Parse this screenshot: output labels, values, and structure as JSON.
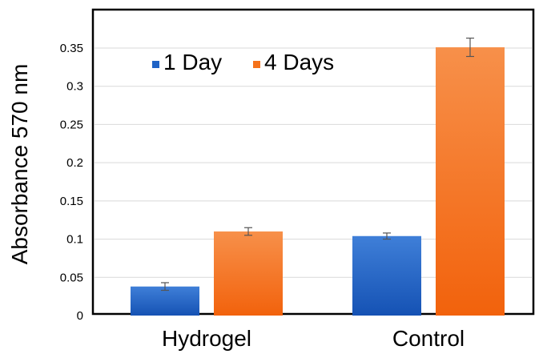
{
  "chart_data": {
    "type": "bar",
    "categories": [
      "Hydrogel",
      "Control"
    ],
    "series": [
      {
        "name": "1 Day",
        "values": [
          0.038,
          0.104
        ],
        "errors": [
          0.005,
          0.004
        ],
        "color": "#1f63c6"
      },
      {
        "name": "4 Days",
        "values": [
          0.11,
          0.351
        ],
        "errors": [
          0.005,
          0.012
        ],
        "color": "#f5721a"
      }
    ],
    "ylabel": "Absorbance  570 nm",
    "xlabel": "",
    "ylim": [
      0,
      0.35
    ],
    "yticks": [
      "0",
      "0.05",
      "0.1",
      "0.15",
      "0.2",
      "0.25",
      "0.3",
      "0.35"
    ],
    "grid": true,
    "legend_position": "top-left"
  }
}
